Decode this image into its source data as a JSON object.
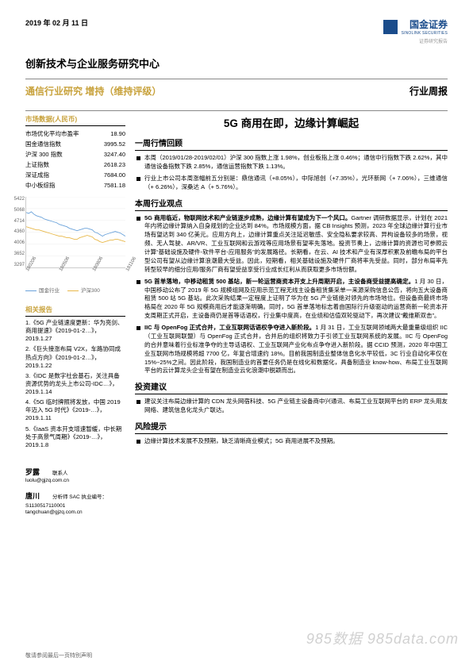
{
  "header": {
    "date": "2019 年 02 月 11 日",
    "brand_cn": "国金证券",
    "brand_en": "SINOLINK SECURITIES",
    "brand_sub": "证券研究报告",
    "center_title": "创新技术与企业服务研究中心",
    "band_left": "通信行业研究   增持（维持评级）",
    "band_right": "行业周报"
  },
  "market": {
    "title": "市场数据(人民币)",
    "rows": [
      {
        "label": "市场优化平均市盈率",
        "value": "18.90"
      },
      {
        "label": "国金通信指数",
        "value": "3995.52"
      },
      {
        "label": "沪深 300 指数",
        "value": "3247.40"
      },
      {
        "label": "上证指数",
        "value": "2618.23"
      },
      {
        "label": "深证成指",
        "value": "7684.00"
      },
      {
        "label": "中小板综指",
        "value": "7581.18"
      }
    ]
  },
  "chart": {
    "y_ticks": [
      "5422",
      "5068",
      "4714",
      "4360",
      "4006",
      "3652",
      "3297"
    ],
    "x_ticks": [
      "180206",
      "180506",
      "180806",
      "181106"
    ],
    "legend": [
      {
        "label": "国金行业",
        "color": "#6aa2da"
      },
      {
        "label": "沪深300",
        "color": "#e8b84a"
      }
    ],
    "series_sky_color": "#6aa2da",
    "series_amber_color": "#e8b84a",
    "series_sky": [
      70,
      69,
      71,
      68,
      66,
      65,
      64,
      62,
      61,
      60,
      59,
      58,
      57,
      55,
      54,
      53,
      52,
      50,
      49,
      48,
      47,
      48,
      49,
      50,
      50,
      49,
      48,
      45,
      44,
      42,
      40,
      42,
      43,
      44,
      45,
      46,
      45,
      44,
      42,
      40
    ],
    "series_amber": [
      52,
      51,
      50,
      49,
      48,
      48,
      47,
      46,
      45,
      44,
      43,
      42,
      41,
      40,
      40,
      39,
      38,
      38,
      37,
      36,
      36,
      38,
      39,
      40,
      41,
      40,
      39,
      36,
      35,
      33,
      32,
      33,
      34,
      35,
      35,
      36,
      36,
      35,
      34,
      33
    ]
  },
  "related": {
    "title": "相关报告",
    "items": [
      "1.《5G 产业链速度更新：华为亮剑、商用提速》《2019-01-2…》，2019.1.27",
      "2.《巨头接涨布局 V2X，车路协同成热点方向》《2019-01-2…》，2019.1.22",
      "3.《IDC 是数字社会基石，关注具备资源优势的龙头上市公司-IDC…》，2019.1.14",
      "4.《5G 临时牌照将发放，中国 2019 年迈入 5G 时代》《2019-…》，2019.1.11",
      "5.《IaaS 资本开支增速暂缓，中长期处于高景气周期》《2019-…》，2019.1.8"
    ]
  },
  "contacts": [
    {
      "name": "罗露",
      "role": "联系人",
      "line1": "luolu@gjzq.com.cn"
    },
    {
      "name": "唐川",
      "role": "分析师 SAC 执业编号：S1130517110001",
      "line1": "tangchuan@gjzq.com.cn"
    }
  ],
  "right": {
    "title": "5G 商用在即，边缘计算崛起",
    "sections": [
      {
        "head": "一周行情回顾",
        "bullets": [
          {
            "lead": "",
            "text": "本周（2019/01/28-2019/02/01）沪深 300 指数上涨 1.98%，创业板指上涨 0.46%；通信中行指数下跌 2.62%，其中通信设备指数下跌 2.85%，通信运营指数下跌 1.13%。"
          },
          {
            "lead": "",
            "text": "行业上市公司本周涨幅前五分别是：鼎信通讯（+8.05%），中际旭创（+7.35%），光环新网（+ 7.06%），三维通信（+ 6.26%），深桑达 A（+ 5.76%）。"
          }
        ]
      },
      {
        "head": "本周行业观点",
        "bullets": [
          {
            "lead": "5G 商用临近，物联网技术和产业链逐步成熟，边缘计算有望成为下一个风口。",
            "text": "Gartner 调研数据显示，计划在 2021 年内将边缘计算纳入自身规划的企业达到 84%。市场规模方面，据 CB Insights 预测，2023 年全球边缘计算行业市场有望达到 340 亿美元。应用方向上，边缘计算重点关注延迟敏感、安全隐私要求较高、异构设备较多的场景，视频、无人驾驶、AR/VR、工业互联网和云游戏等应用场景有望率先落地。投资节奏上，边缘计算的资源也可参照云计算“基础设施及硬件-软件平台-应用服务”的发展路径。长期看，在云、AI 技术和产业有深厚积累及前瞻布局的平台型公司有望从边缘计算浪潮最大受益。因此，短期看，相关基础设施及硬件厂商将率先受益。同时，部分布局率先转型较早的细分应用/服务厂商有望受益享受行业成长红利从而获取更多市场份额。"
          },
          {
            "lead": "5G 首单落地，中移动租赁 500 基站，新一轮运营商资本开支上升周期开启，主设备商受益提高确定。",
            "text": "1 月 30 日，中国移动公布了 2019 年 5G 规模组网及应用示范工程无线主设备租赁集采单一来源采购信息公告，将向五大设备商租赁 500 站 5G 基站。此次采购结果一定程度上证明了华为在 5G 产业链绝对领先的市场地位。但设备商最终市场格局在 2020 年 5G 规模商用后才能逐渐明确。同时，5G 首单落地标志着由国际行升级驱动的运营商新一轮资本开支周期正式开启，主设备商仍是首等话语权，行业集中度高，在业绩和估值双轮驱动下，再次建议“戴维斯双击”。"
          },
          {
            "lead": "IIC 与 OpenFog 正式合并，工业互联网话语权争夺进入新阶段。",
            "text": "1 月 31 日，工业互联网领域两大最重量级组织 IIC（工业互联网联盟）与 OpenFog 正式合并，合并后的组织将致力于引领工业互联网系统的发展。IIC 与 OpenFog 的合并意味着行业标准争夺的主导话语权、工业互联网产业化布点争夺进入新阶段。据 CCID 预测，2020 年中国工业互联网市场规模将超 7700 亿，年复合增速约 18%。目前我国制造业整体信息化水平较低，3C 行业自动化率仅在 15%~25%之间。因此阶段，我国制造业的首要任务仍是在线化和数据化，具备制造业 know-how、布局工业互联网平台的云计算龙头企业有望在制造业云化浪潮中脱颖而出。"
          }
        ]
      },
      {
        "head": "投资建议",
        "bullets": [
          {
            "lead": "",
            "text": "建议关注布局边缘计算的 CDN 龙头网宿科技、5G 产业链主设备商中兴通讯、布局工业互联网平台的 ERP 龙头用友网络、建筑信息化龙头广联达。"
          }
        ]
      },
      {
        "head": "风险提示",
        "bullets": [
          {
            "lead": "",
            "text": "边缘计算技术发展不及预期，缺乏清晰商业模式；5G 商用进展不及预期。"
          }
        ]
      }
    ]
  },
  "footer": "敬请参阅最后一页特别声明",
  "watermark": "985数据 985data.com"
}
